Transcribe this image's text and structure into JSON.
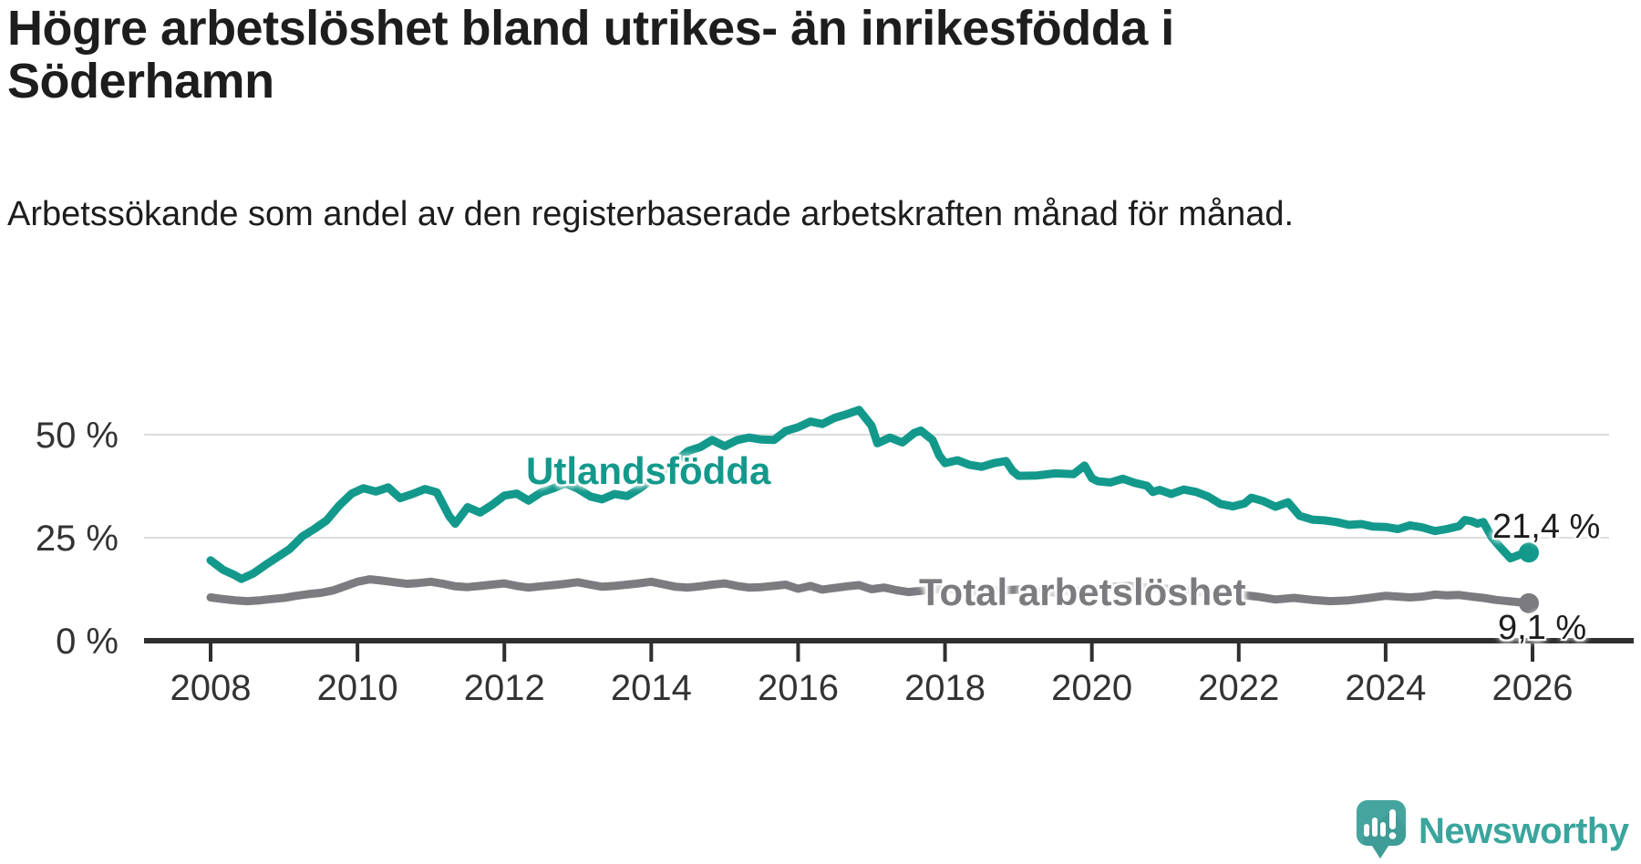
{
  "header": {
    "title": "Högre arbetslöshet bland utrikes- än inrikesfödda i Söderhamn",
    "subtitle": "Arbetssökande som andel av den registerbaserade arbetskraften månad för månad."
  },
  "chart_data": {
    "type": "line",
    "title": "Högre arbetslöshet bland utrikes- än inrikesfödda i Söderhamn",
    "xlabel": "",
    "ylabel": "Arbetssökande som andel av den registerbaserade arbetskraften (%)",
    "grid": "horizontal",
    "legend_position": "inline-labels",
    "x_axis": {
      "ticks": [
        2008,
        2010,
        2012,
        2014,
        2016,
        2018,
        2020,
        2022,
        2024,
        2026
      ]
    },
    "y_axis": {
      "unit": "%",
      "range": [
        0,
        60
      ],
      "ticks": [
        {
          "value": 0,
          "label": "0 %"
        },
        {
          "value": 25,
          "label": "25 %"
        },
        {
          "value": 50,
          "label": "50 %"
        }
      ]
    },
    "series": [
      {
        "name": "Utlandsfödda",
        "color": "#13998c",
        "end_label": "21,4 %",
        "end_value": 21.4,
        "points": [
          [
            2008.0,
            19.5
          ],
          [
            2008.17,
            17.2
          ],
          [
            2008.33,
            15.9
          ],
          [
            2008.42,
            15.0
          ],
          [
            2008.58,
            16.3
          ],
          [
            2008.75,
            18.4
          ],
          [
            2008.92,
            20.4
          ],
          [
            2009.08,
            22.3
          ],
          [
            2009.25,
            25.3
          ],
          [
            2009.42,
            27.2
          ],
          [
            2009.58,
            29.2
          ],
          [
            2009.75,
            32.8
          ],
          [
            2009.92,
            35.7
          ],
          [
            2010.08,
            37.0
          ],
          [
            2010.25,
            36.2
          ],
          [
            2010.42,
            37.2
          ],
          [
            2010.58,
            34.6
          ],
          [
            2010.75,
            35.6
          ],
          [
            2010.92,
            36.8
          ],
          [
            2011.08,
            36.0
          ],
          [
            2011.25,
            30.2
          ],
          [
            2011.33,
            28.4
          ],
          [
            2011.5,
            32.4
          ],
          [
            2011.67,
            31.1
          ],
          [
            2011.83,
            32.9
          ],
          [
            2012.0,
            35.2
          ],
          [
            2012.17,
            35.7
          ],
          [
            2012.33,
            34.0
          ],
          [
            2012.5,
            36.0
          ],
          [
            2012.67,
            37.0
          ],
          [
            2012.83,
            38.2
          ],
          [
            2013.0,
            36.9
          ],
          [
            2013.17,
            35.0
          ],
          [
            2013.33,
            34.3
          ],
          [
            2013.5,
            35.6
          ],
          [
            2013.67,
            35.1
          ],
          [
            2013.83,
            36.8
          ],
          [
            2014.0,
            39.0
          ],
          [
            2014.17,
            41.4
          ],
          [
            2014.33,
            43.5
          ],
          [
            2014.5,
            46.0
          ],
          [
            2014.67,
            47.0
          ],
          [
            2014.83,
            48.7
          ],
          [
            2015.0,
            47.2
          ],
          [
            2015.17,
            48.7
          ],
          [
            2015.33,
            49.3
          ],
          [
            2015.5,
            48.8
          ],
          [
            2015.67,
            48.7
          ],
          [
            2015.83,
            50.9
          ],
          [
            2016.0,
            51.8
          ],
          [
            2016.17,
            53.2
          ],
          [
            2016.33,
            52.6
          ],
          [
            2016.5,
            54.1
          ],
          [
            2016.67,
            55.0
          ],
          [
            2016.83,
            56.0
          ],
          [
            2017.0,
            52.2
          ],
          [
            2017.08,
            47.9
          ],
          [
            2017.25,
            49.3
          ],
          [
            2017.42,
            48.1
          ],
          [
            2017.58,
            50.4
          ],
          [
            2017.67,
            51.0
          ],
          [
            2017.83,
            48.7
          ],
          [
            2017.92,
            45.0
          ],
          [
            2018.0,
            43.1
          ],
          [
            2018.17,
            43.8
          ],
          [
            2018.33,
            42.7
          ],
          [
            2018.5,
            42.2
          ],
          [
            2018.67,
            43.1
          ],
          [
            2018.83,
            43.6
          ],
          [
            2018.92,
            41.2
          ],
          [
            2019.0,
            40.0
          ],
          [
            2019.25,
            40.1
          ],
          [
            2019.5,
            40.6
          ],
          [
            2019.75,
            40.4
          ],
          [
            2019.9,
            42.5
          ],
          [
            2020.0,
            39.4
          ],
          [
            2020.08,
            38.7
          ],
          [
            2020.25,
            38.4
          ],
          [
            2020.42,
            39.3
          ],
          [
            2020.58,
            38.3
          ],
          [
            2020.75,
            37.6
          ],
          [
            2020.83,
            36.1
          ],
          [
            2020.92,
            36.6
          ],
          [
            2021.08,
            35.6
          ],
          [
            2021.25,
            36.7
          ],
          [
            2021.42,
            36.1
          ],
          [
            2021.58,
            35.0
          ],
          [
            2021.75,
            33.2
          ],
          [
            2021.92,
            32.6
          ],
          [
            2022.08,
            33.3
          ],
          [
            2022.17,
            34.7
          ],
          [
            2022.33,
            33.9
          ],
          [
            2022.5,
            32.5
          ],
          [
            2022.67,
            33.6
          ],
          [
            2022.83,
            30.3
          ],
          [
            2023.0,
            29.4
          ],
          [
            2023.17,
            29.2
          ],
          [
            2023.33,
            28.8
          ],
          [
            2023.5,
            28.1
          ],
          [
            2023.67,
            28.3
          ],
          [
            2023.83,
            27.7
          ],
          [
            2024.0,
            27.6
          ],
          [
            2024.17,
            27.1
          ],
          [
            2024.33,
            28.0
          ],
          [
            2024.5,
            27.5
          ],
          [
            2024.67,
            26.6
          ],
          [
            2024.83,
            27.1
          ],
          [
            2025.0,
            27.8
          ],
          [
            2025.08,
            29.3
          ],
          [
            2025.17,
            29.0
          ],
          [
            2025.25,
            28.4
          ],
          [
            2025.33,
            28.8
          ],
          [
            2025.45,
            25.0
          ],
          [
            2025.58,
            22.3
          ],
          [
            2025.7,
            20.0
          ],
          [
            2025.83,
            20.9
          ],
          [
            2025.95,
            21.4
          ]
        ]
      },
      {
        "name": "Total arbetslöshet",
        "color": "#7b7b80",
        "end_label": "9,1 %",
        "end_value": 9.1,
        "points": [
          [
            2008.0,
            10.5
          ],
          [
            2008.17,
            10.1
          ],
          [
            2008.33,
            9.8
          ],
          [
            2008.5,
            9.6
          ],
          [
            2008.67,
            9.8
          ],
          [
            2008.83,
            10.1
          ],
          [
            2009.0,
            10.4
          ],
          [
            2009.17,
            10.9
          ],
          [
            2009.33,
            11.3
          ],
          [
            2009.5,
            11.6
          ],
          [
            2009.67,
            12.2
          ],
          [
            2009.83,
            13.2
          ],
          [
            2010.0,
            14.3
          ],
          [
            2010.17,
            14.9
          ],
          [
            2010.33,
            14.6
          ],
          [
            2010.5,
            14.2
          ],
          [
            2010.67,
            13.8
          ],
          [
            2010.83,
            14.0
          ],
          [
            2011.0,
            14.3
          ],
          [
            2011.17,
            13.8
          ],
          [
            2011.33,
            13.2
          ],
          [
            2011.5,
            13.0
          ],
          [
            2011.67,
            13.3
          ],
          [
            2011.83,
            13.6
          ],
          [
            2012.0,
            13.9
          ],
          [
            2012.17,
            13.3
          ],
          [
            2012.33,
            12.9
          ],
          [
            2012.5,
            13.2
          ],
          [
            2012.67,
            13.5
          ],
          [
            2012.83,
            13.8
          ],
          [
            2013.0,
            14.2
          ],
          [
            2013.17,
            13.6
          ],
          [
            2013.33,
            13.1
          ],
          [
            2013.5,
            13.3
          ],
          [
            2013.67,
            13.6
          ],
          [
            2013.83,
            13.9
          ],
          [
            2014.0,
            14.3
          ],
          [
            2014.17,
            13.7
          ],
          [
            2014.33,
            13.1
          ],
          [
            2014.5,
            12.9
          ],
          [
            2014.67,
            13.2
          ],
          [
            2014.83,
            13.6
          ],
          [
            2015.0,
            13.9
          ],
          [
            2015.17,
            13.3
          ],
          [
            2015.33,
            12.9
          ],
          [
            2015.5,
            13.0
          ],
          [
            2015.67,
            13.3
          ],
          [
            2015.83,
            13.6
          ],
          [
            2016.0,
            12.6
          ],
          [
            2016.17,
            13.3
          ],
          [
            2016.33,
            12.4
          ],
          [
            2016.5,
            12.8
          ],
          [
            2016.67,
            13.2
          ],
          [
            2016.83,
            13.5
          ],
          [
            2017.0,
            12.5
          ],
          [
            2017.17,
            12.9
          ],
          [
            2017.33,
            12.3
          ],
          [
            2017.5,
            11.8
          ],
          [
            2017.67,
            12.1
          ],
          [
            2017.83,
            12.4
          ],
          [
            2018.0,
            12.6
          ],
          [
            2018.25,
            12.1
          ],
          [
            2018.5,
            11.8
          ],
          [
            2018.75,
            12.2
          ],
          [
            2019.0,
            12.4
          ],
          [
            2019.25,
            11.9
          ],
          [
            2019.5,
            11.7
          ],
          [
            2019.75,
            12.1
          ],
          [
            2020.0,
            12.3
          ],
          [
            2020.25,
            13.0
          ],
          [
            2020.5,
            13.3
          ],
          [
            2020.75,
            12.9
          ],
          [
            2021.0,
            12.6
          ],
          [
            2021.25,
            12.2
          ],
          [
            2021.5,
            11.8
          ],
          [
            2021.75,
            11.4
          ],
          [
            2022.0,
            11.2
          ],
          [
            2022.25,
            10.7
          ],
          [
            2022.5,
            10.0
          ],
          [
            2022.75,
            10.4
          ],
          [
            2023.0,
            9.9
          ],
          [
            2023.25,
            9.6
          ],
          [
            2023.5,
            9.8
          ],
          [
            2023.75,
            10.3
          ],
          [
            2024.0,
            10.9
          ],
          [
            2024.17,
            10.7
          ],
          [
            2024.33,
            10.5
          ],
          [
            2024.5,
            10.7
          ],
          [
            2024.67,
            11.2
          ],
          [
            2024.83,
            11.0
          ],
          [
            2025.0,
            11.1
          ],
          [
            2025.17,
            10.7
          ],
          [
            2025.33,
            10.4
          ],
          [
            2025.5,
            9.9
          ],
          [
            2025.67,
            9.6
          ],
          [
            2025.83,
            9.3
          ],
          [
            2025.95,
            9.1
          ]
        ]
      }
    ]
  },
  "branding": {
    "logo_text": "Newsworthy"
  }
}
